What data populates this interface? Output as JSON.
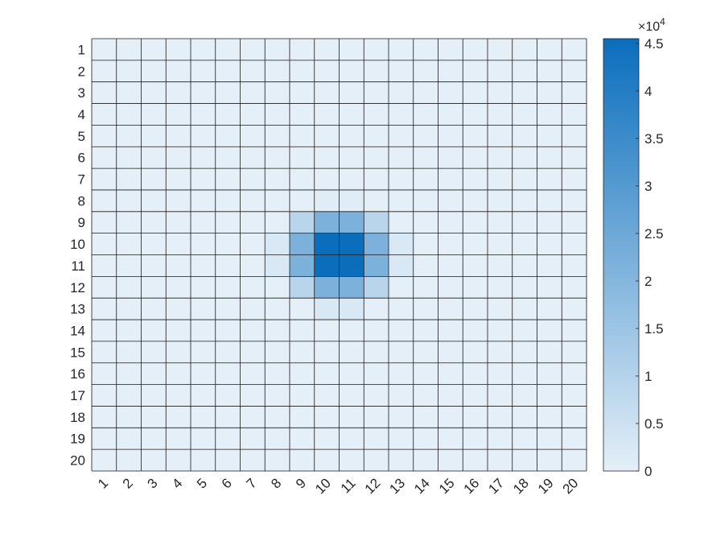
{
  "chart_data": {
    "type": "heatmap",
    "x_labels": [
      "1",
      "2",
      "3",
      "4",
      "5",
      "6",
      "7",
      "8",
      "9",
      "10",
      "11",
      "12",
      "13",
      "14",
      "15",
      "16",
      "17",
      "18",
      "19",
      "20"
    ],
    "y_labels": [
      "1",
      "2",
      "3",
      "4",
      "5",
      "6",
      "7",
      "8",
      "9",
      "10",
      "11",
      "12",
      "13",
      "14",
      "15",
      "16",
      "17",
      "18",
      "19",
      "20"
    ],
    "values": [
      [
        0,
        0,
        0,
        0,
        0,
        0,
        0,
        0,
        0,
        0,
        0,
        0,
        0,
        0,
        0,
        0,
        0,
        0,
        0,
        0
      ],
      [
        0,
        0,
        0,
        0,
        0,
        0,
        0,
        0,
        0,
        0,
        0,
        0,
        0,
        0,
        0,
        0,
        0,
        0,
        0,
        0
      ],
      [
        0,
        0,
        0,
        0,
        0,
        0,
        0,
        0,
        0,
        0,
        0,
        0,
        0,
        0,
        0,
        0,
        0,
        0,
        0,
        0
      ],
      [
        0,
        0,
        0,
        0,
        0,
        0,
        0,
        0,
        0,
        0,
        0,
        0,
        0,
        0,
        0,
        0,
        0,
        0,
        0,
        0
      ],
      [
        0,
        0,
        0,
        0,
        0,
        0,
        0,
        0,
        0,
        0,
        0,
        0,
        0,
        0,
        0,
        0,
        0,
        0,
        0,
        0
      ],
      [
        0,
        0,
        0,
        0,
        0,
        0,
        0,
        0,
        0,
        0,
        0,
        0,
        0,
        0,
        0,
        0,
        0,
        0,
        0,
        0
      ],
      [
        0,
        0,
        0,
        0,
        0,
        0,
        0,
        0,
        0,
        0,
        0,
        0,
        0,
        0,
        0,
        0,
        0,
        0,
        0,
        0
      ],
      [
        0,
        0,
        0,
        0,
        0,
        0,
        0,
        0,
        0,
        800,
        800,
        0,
        0,
        0,
        0,
        0,
        0,
        0,
        0,
        0
      ],
      [
        0,
        0,
        0,
        0,
        0,
        0,
        0,
        0,
        9000,
        22000,
        22000,
        9000,
        0,
        0,
        0,
        0,
        0,
        0,
        0,
        0
      ],
      [
        0,
        0,
        0,
        0,
        0,
        0,
        0,
        2500,
        22000,
        45500,
        45500,
        22000,
        2500,
        0,
        0,
        0,
        0,
        0,
        0,
        0
      ],
      [
        0,
        0,
        0,
        0,
        0,
        0,
        0,
        2500,
        22000,
        45500,
        45500,
        22000,
        2500,
        0,
        0,
        0,
        0,
        0,
        0,
        0
      ],
      [
        0,
        0,
        0,
        0,
        0,
        0,
        0,
        0,
        9000,
        22000,
        22000,
        9000,
        0,
        0,
        0,
        0,
        0,
        0,
        0,
        0
      ],
      [
        0,
        0,
        0,
        0,
        0,
        0,
        0,
        0,
        0,
        2500,
        2500,
        0,
        0,
        0,
        0,
        0,
        0,
        0,
        0,
        0
      ],
      [
        0,
        0,
        0,
        0,
        0,
        0,
        0,
        0,
        0,
        0,
        0,
        0,
        0,
        0,
        0,
        0,
        0,
        0,
        0,
        0
      ],
      [
        0,
        0,
        0,
        0,
        0,
        0,
        0,
        0,
        0,
        0,
        0,
        0,
        0,
        0,
        0,
        0,
        0,
        0,
        0,
        0
      ],
      [
        0,
        0,
        0,
        0,
        0,
        0,
        0,
        0,
        0,
        0,
        0,
        0,
        0,
        0,
        0,
        0,
        0,
        0,
        0,
        0
      ],
      [
        0,
        0,
        0,
        0,
        0,
        0,
        0,
        0,
        0,
        0,
        0,
        0,
        0,
        0,
        0,
        0,
        0,
        0,
        0,
        0
      ],
      [
        0,
        0,
        0,
        0,
        0,
        0,
        0,
        0,
        0,
        0,
        0,
        0,
        0,
        0,
        0,
        0,
        0,
        0,
        0,
        0
      ],
      [
        0,
        0,
        0,
        0,
        0,
        0,
        0,
        0,
        0,
        0,
        0,
        0,
        0,
        0,
        0,
        0,
        0,
        0,
        0,
        0
      ],
      [
        0,
        0,
        0,
        0,
        0,
        0,
        0,
        0,
        0,
        0,
        0,
        0,
        0,
        0,
        0,
        0,
        0,
        0,
        0,
        0
      ]
    ],
    "colorbar": {
      "min": 0,
      "max": 45500,
      "ticks": [
        0,
        0.5,
        1,
        1.5,
        2,
        2.5,
        3,
        3.5,
        4,
        4.5
      ],
      "tick_labels": [
        "0",
        "0.5",
        "1",
        "1.5",
        "2",
        "2.5",
        "3",
        "3.5",
        "4",
        "4.5"
      ],
      "scale_base": "×10",
      "scale_exponent": "4",
      "color_low": "#e4eff8",
      "color_high": "#0a6ebd"
    },
    "grid_line_color": "#1a1a1a",
    "x_tick_rotation_deg": -45
  }
}
